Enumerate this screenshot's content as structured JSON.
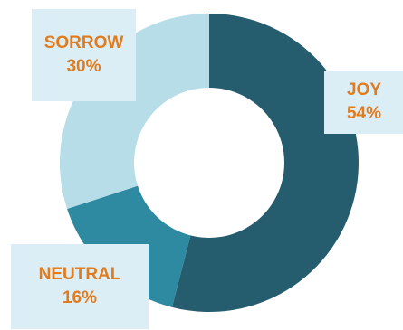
{
  "chart_data": {
    "type": "pie",
    "subtype": "donut",
    "title": "",
    "slices": [
      {
        "label": "JOY",
        "value": 54,
        "value_text": "54%",
        "color": "#255d6e"
      },
      {
        "label": "NEUTRAL",
        "value": 16,
        "value_text": "16%",
        "color": "#2e8aa0"
      },
      {
        "label": "SORROW",
        "value": 30,
        "value_text": "30%",
        "color": "#b6dde8"
      }
    ],
    "label_color": "#e07b1e",
    "label_background": "#dceef5"
  }
}
